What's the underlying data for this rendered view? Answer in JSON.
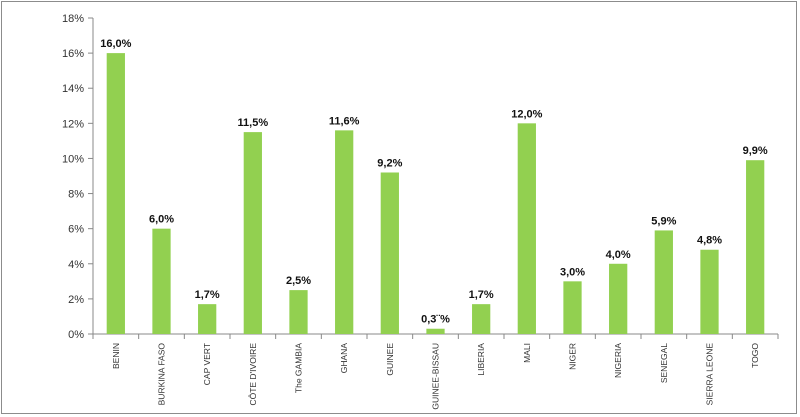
{
  "chart_data": {
    "type": "bar",
    "title": "",
    "xlabel": "",
    "ylabel": "",
    "ylim": [
      0,
      18
    ],
    "y_ticks": [
      "0%",
      "2%",
      "4%",
      "6%",
      "8%",
      "10%",
      "12%",
      "14%",
      "16%",
      "18%"
    ],
    "y_tick_values": [
      0,
      2,
      4,
      6,
      8,
      10,
      12,
      14,
      16,
      18
    ],
    "grid": false,
    "legend": "none",
    "bar_color": "#92d050",
    "categories": [
      "BENIN",
      "BURKINA FASO",
      "CAP VERT",
      "CÔTE D'IVOIRE",
      "The GAMBIA",
      "GHANA",
      "GUINEE",
      "GUINEE-BISSAU",
      "LIBERIA",
      "MALI",
      "NIGER",
      "NIGERIA",
      "SENEGAL",
      "SIERRA LEONE",
      "TOGO"
    ],
    "values": [
      16.0,
      6.0,
      1.7,
      11.5,
      2.5,
      11.6,
      9.2,
      0.3,
      1.7,
      12.0,
      3.0,
      4.0,
      5.9,
      4.8,
      9.9
    ],
    "data_labels": [
      "16,0%",
      "6,0%",
      "1,7%",
      "11,5%",
      "2,5%",
      "11,6%",
      "9,2%",
      "0,3¨%",
      "1,7%",
      "12,0%",
      "3,0%",
      "4,0%",
      "5,9%",
      "4,8%",
      "9,9%"
    ]
  }
}
